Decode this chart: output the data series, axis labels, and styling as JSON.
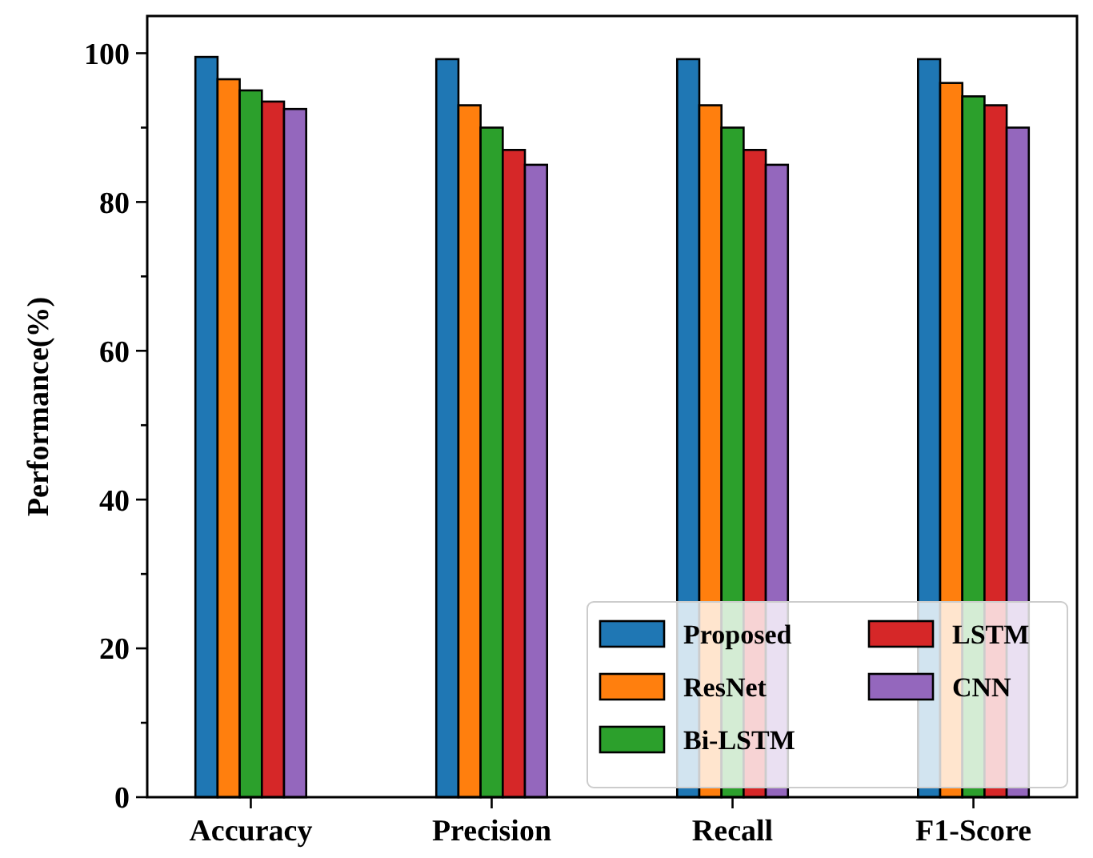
{
  "chart_data": {
    "type": "bar",
    "ylabel": "Performance(%)",
    "categories": [
      "Accuracy",
      "Precision",
      "Recall",
      "F1-Score"
    ],
    "series": [
      {
        "name": "Proposed",
        "color": "#1f77b4",
        "values": [
          99.5,
          99.2,
          99.2,
          99.2
        ]
      },
      {
        "name": "ResNet",
        "color": "#ff7f0e",
        "values": [
          96.5,
          93,
          93,
          96
        ]
      },
      {
        "name": "Bi-LSTM",
        "color": "#2ca02c",
        "values": [
          95,
          90,
          90,
          94.2
        ]
      },
      {
        "name": "LSTM",
        "color": "#d62728",
        "values": [
          93.5,
          87,
          87,
          93
        ]
      },
      {
        "name": "CNN",
        "color": "#9467bd",
        "values": [
          92.5,
          85,
          85,
          90
        ]
      }
    ],
    "ylim": [
      0,
      105
    ],
    "yticks": [
      0,
      {
        "value": 10,
        "label": null
      },
      20,
      {
        "value": 30,
        "label": null
      },
      40,
      {
        "value": 50,
        "label": null
      },
      60,
      {
        "value": 70,
        "label": null
      },
      80,
      {
        "value": 90,
        "label": null
      },
      100
    ],
    "grid": false,
    "legend": "bottom right"
  }
}
